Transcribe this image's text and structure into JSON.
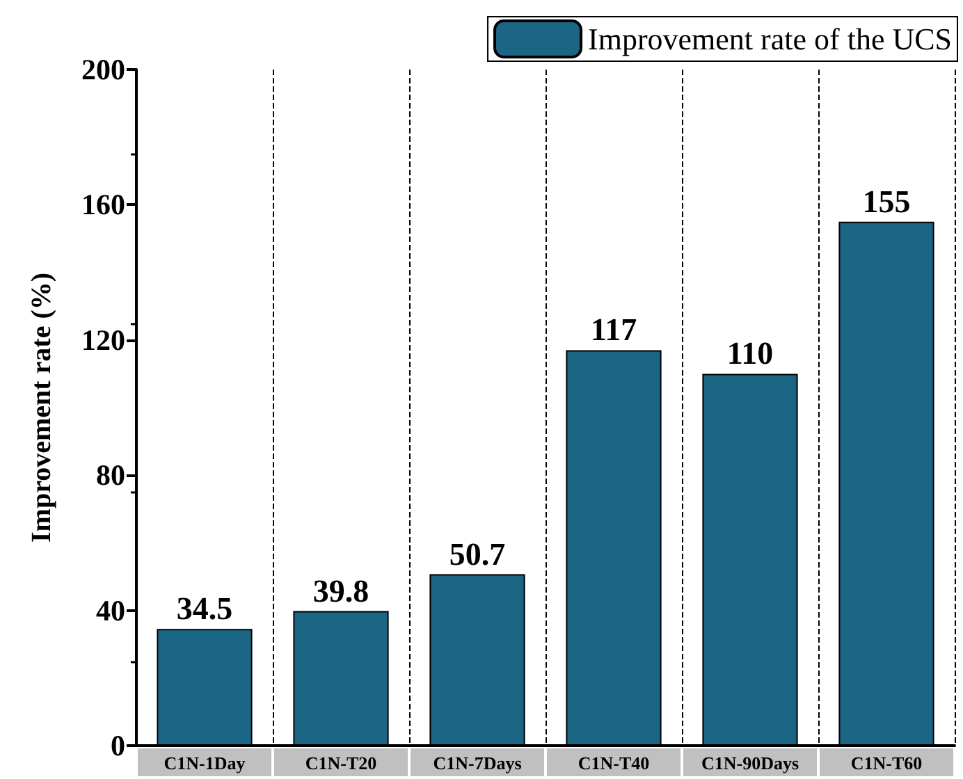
{
  "chart_data": {
    "type": "bar",
    "ylabel": "Improvement rate (%)",
    "categories": [
      "C1N-1Day",
      "C1N-T20",
      "C1N-7Days",
      "C1N-T40",
      "C1N-90Days",
      "C1N-T60"
    ],
    "series": [
      {
        "name": "Improvement rate of the UCS",
        "color": "#1b6585",
        "values": [
          34.5,
          39.8,
          50.7,
          117,
          110,
          155
        ]
      }
    ],
    "ylim": [
      0,
      200
    ],
    "yticks": [
      0,
      40,
      80,
      120,
      160,
      200
    ],
    "grid": "x",
    "legend": "top right",
    "data_labels": true
  }
}
